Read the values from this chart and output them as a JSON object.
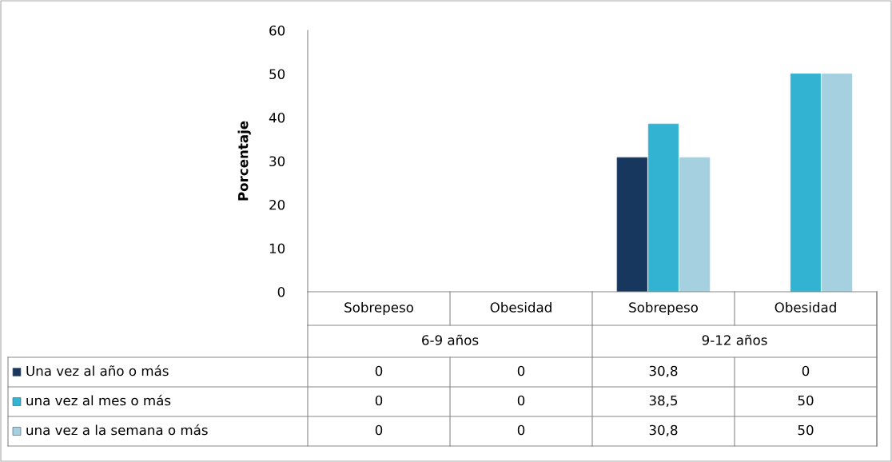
{
  "chart_data": {
    "type": "bar",
    "ylabel": "Porcentaje",
    "categories": [
      "Sobrepeso",
      "Obesidad",
      "Sobrepeso",
      "Obesidad"
    ],
    "annotations": [
      "6-9 años",
      "9-12 años"
    ],
    "series": [
      {
        "name": "Una vez al año o más",
        "color": "#17375e",
        "values": [
          0,
          0,
          30.8,
          0
        ],
        "value_labels": [
          "0",
          "0",
          "30,8",
          "0"
        ]
      },
      {
        "name": "una vez al mes o más",
        "color": "#31b3d1",
        "values": [
          0,
          0,
          38.5,
          50
        ],
        "value_labels": [
          "0",
          "0",
          "38,5",
          "50"
        ]
      },
      {
        "name": "una vez a la semana o más",
        "color": "#a5d0df",
        "values": [
          0,
          0,
          30.8,
          50
        ],
        "value_labels": [
          "0",
          "0",
          "30,8",
          "50"
        ]
      }
    ],
    "ylim": [
      0,
      60
    ],
    "yticks": [
      0,
      10,
      20,
      30,
      40,
      50,
      60
    ],
    "grid": false,
    "legend": "bottom"
  }
}
